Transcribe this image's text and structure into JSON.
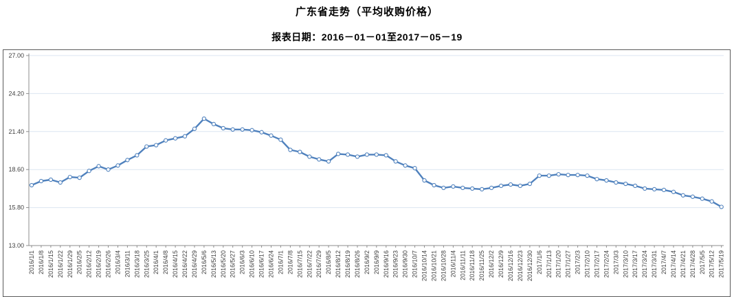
{
  "page": {
    "title": "广东省走势（平均收购价格）",
    "subtitle": "报表日期：2016－01－01至2017－05－19"
  },
  "chart_data": {
    "type": "line",
    "title": "广东省走势（平均收购价格）",
    "subtitle": "报表日期：2016－01－01至2017－05－19",
    "series_name": "平均收购价格",
    "legend": "none",
    "grid": true,
    "ylim": [
      13,
      27
    ],
    "y_ticks": [
      27.0,
      24.2,
      21.4,
      18.6,
      15.8,
      13.0
    ],
    "y_tick_labels": [
      "27.00",
      "24.20",
      "21.40",
      "18.60",
      "15.80",
      "13.00"
    ],
    "x": [
      "2016/1/1",
      "2016/1/8",
      "2016/1/15",
      "2016/1/22",
      "2016/1/29",
      "2016/2/5",
      "2016/2/12",
      "2016/2/19",
      "2016/2/26",
      "2016/3/4",
      "2016/3/11",
      "2016/3/18",
      "2016/3/25",
      "2016/4/1",
      "2016/4/8",
      "2016/4/15",
      "2016/4/22",
      "2016/4/29",
      "2016/5/6",
      "2016/5/13",
      "2016/5/20",
      "2016/5/27",
      "2016/6/3",
      "2016/6/10",
      "2016/6/17",
      "2016/6/24",
      "2016/7/1",
      "2016/7/8",
      "2016/7/15",
      "2016/7/22",
      "2016/7/29",
      "2016/8/5",
      "2016/8/12",
      "2016/8/19",
      "2016/8/26",
      "2016/9/2",
      "2016/9/9",
      "2016/9/16",
      "2016/9/23",
      "2016/9/30",
      "2016/10/7",
      "2016/10/14",
      "2016/10/21",
      "2016/10/28",
      "2016/11/4",
      "2016/11/11",
      "2016/11/18",
      "2016/11/25",
      "2016/12/2",
      "2016/12/9",
      "2016/12/16",
      "2016/12/23",
      "2016/12/30",
      "2017/1/6",
      "2017/1/13",
      "2017/1/20",
      "2017/1/27",
      "2017/2/3",
      "2017/2/10",
      "2017/2/17",
      "2017/2/24",
      "2017/3/3",
      "2017/3/10",
      "2017/3/17",
      "2017/3/24",
      "2017/3/31",
      "2017/4/7",
      "2017/4/14",
      "2017/4/21",
      "2017/4/28",
      "2017/5/5",
      "2017/5/12",
      "2017/5/19"
    ],
    "values": [
      17.45,
      17.75,
      17.85,
      17.65,
      18.05,
      18.0,
      18.5,
      18.85,
      18.6,
      18.9,
      19.3,
      19.65,
      20.3,
      20.4,
      20.75,
      20.9,
      21.05,
      21.6,
      22.35,
      21.95,
      21.65,
      21.55,
      21.55,
      21.5,
      21.35,
      21.1,
      20.8,
      20.05,
      19.9,
      19.55,
      19.35,
      19.2,
      19.75,
      19.7,
      19.55,
      19.7,
      19.7,
      19.65,
      19.2,
      18.9,
      18.7,
      17.8,
      17.45,
      17.25,
      17.35,
      17.25,
      17.2,
      17.15,
      17.25,
      17.4,
      17.5,
      17.4,
      17.55,
      18.15,
      18.15,
      18.25,
      18.2,
      18.2,
      18.15,
      17.9,
      17.8,
      17.65,
      17.55,
      17.4,
      17.2,
      17.15,
      17.1,
      16.95,
      16.7,
      16.6,
      16.45,
      16.25,
      15.85
    ],
    "line_color": "#4f81bd",
    "marker": "circle-hollow",
    "grid_color": "#dbe5f1",
    "axis_color": "#8c8c8c",
    "label_color": "#3f3f3f",
    "border_color": "#595959",
    "background": "#ffffff"
  }
}
